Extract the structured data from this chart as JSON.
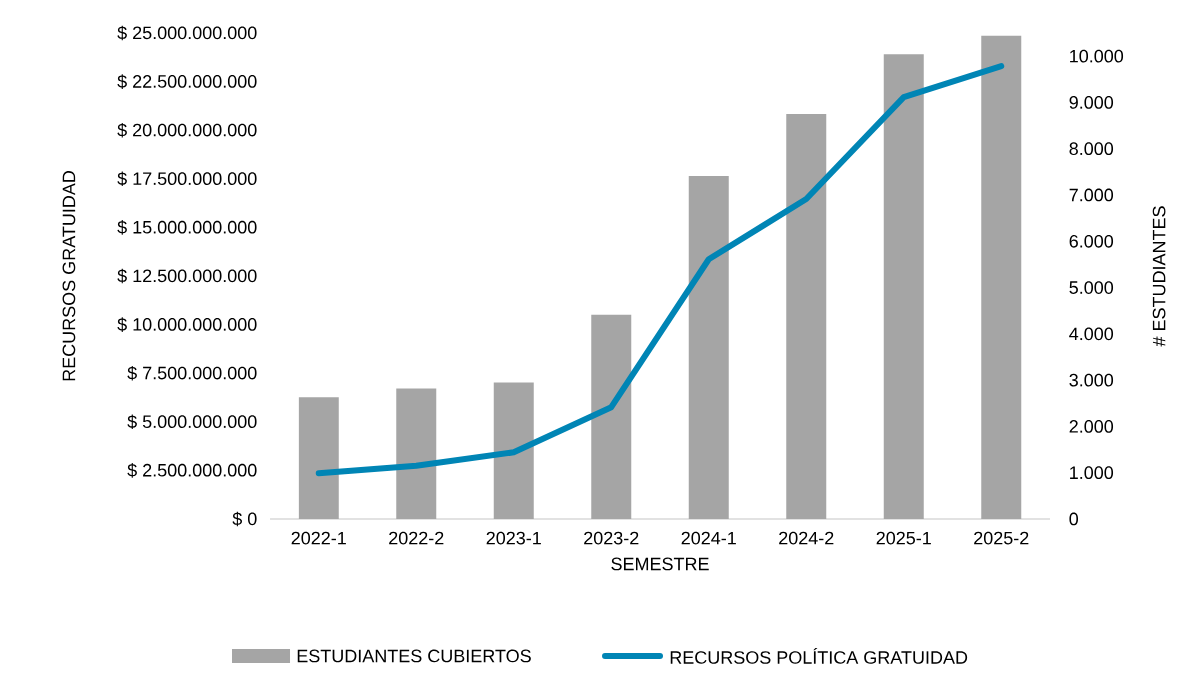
{
  "chart_data": {
    "type": "bar",
    "xlabel": "SEMESTRE",
    "ylabel": "RECURSOS GRATUIDAD",
    "y2label": "# ESTUDIANTES",
    "categories": [
      "2022-1",
      "2022-2",
      "2023-1",
      "2023-2",
      "2024-1",
      "2024-2",
      "2025-1",
      "2025-2"
    ],
    "series": [
      {
        "name": "ESTUDIANTES CUBIERTOS",
        "axis": "y2",
        "color": "#a5a5a5",
        "values": [
          2630,
          2820,
          2950,
          4410,
          7410,
          8750,
          10040,
          10440
        ]
      },
      {
        "name": "RECURSOS POLÍTICA GRATUIDAD",
        "type": "line",
        "color": "#0085b5",
        "values": [
          2350000000,
          2740000000,
          3430000000,
          5750000000,
          13360000000,
          16460000000,
          21700000000,
          23300000000
        ]
      }
    ],
    "ylim": [
      0,
      25000000000
    ],
    "yticks": [
      {
        "value": 0,
        "label": "$ 0"
      },
      {
        "value": 2500000000,
        "label": "$ 2.500.000.000"
      },
      {
        "value": 5000000000,
        "label": "$ 5.000.000.000"
      },
      {
        "value": 7500000000,
        "label": "$ 7.500.000.000"
      },
      {
        "value": 10000000000,
        "label": "$ 10.000.000.000"
      },
      {
        "value": 12500000000,
        "label": "$ 12.500.000.000"
      },
      {
        "value": 15000000000,
        "label": "$ 15.000.000.000"
      },
      {
        "value": 17500000000,
        "label": "$ 17.500.000.000"
      },
      {
        "value": 20000000000,
        "label": "$ 20.000.000.000"
      },
      {
        "value": 22500000000,
        "label": "$ 22.500.000.000"
      },
      {
        "value": 25000000000,
        "label": "$ 25.000.000.000"
      }
    ],
    "y2lim": [
      0,
      10500
    ],
    "y2ticks": [
      0,
      {
        "value": 1000,
        "label": "1.000"
      },
      {
        "value": 2000,
        "label": "2.000"
      },
      {
        "value": 3000,
        "label": "3.000"
      },
      {
        "value": 4000,
        "label": "4.000"
      },
      {
        "value": 5000,
        "label": "5.000"
      },
      {
        "value": 6000,
        "label": "6.000"
      },
      {
        "value": 7000,
        "label": "7.000"
      },
      {
        "value": 8000,
        "label": "8.000"
      },
      {
        "value": 9000,
        "label": "9.000"
      },
      {
        "value": 10000,
        "label": "10.000"
      }
    ],
    "legend": "bottom",
    "line_style": "solid"
  }
}
